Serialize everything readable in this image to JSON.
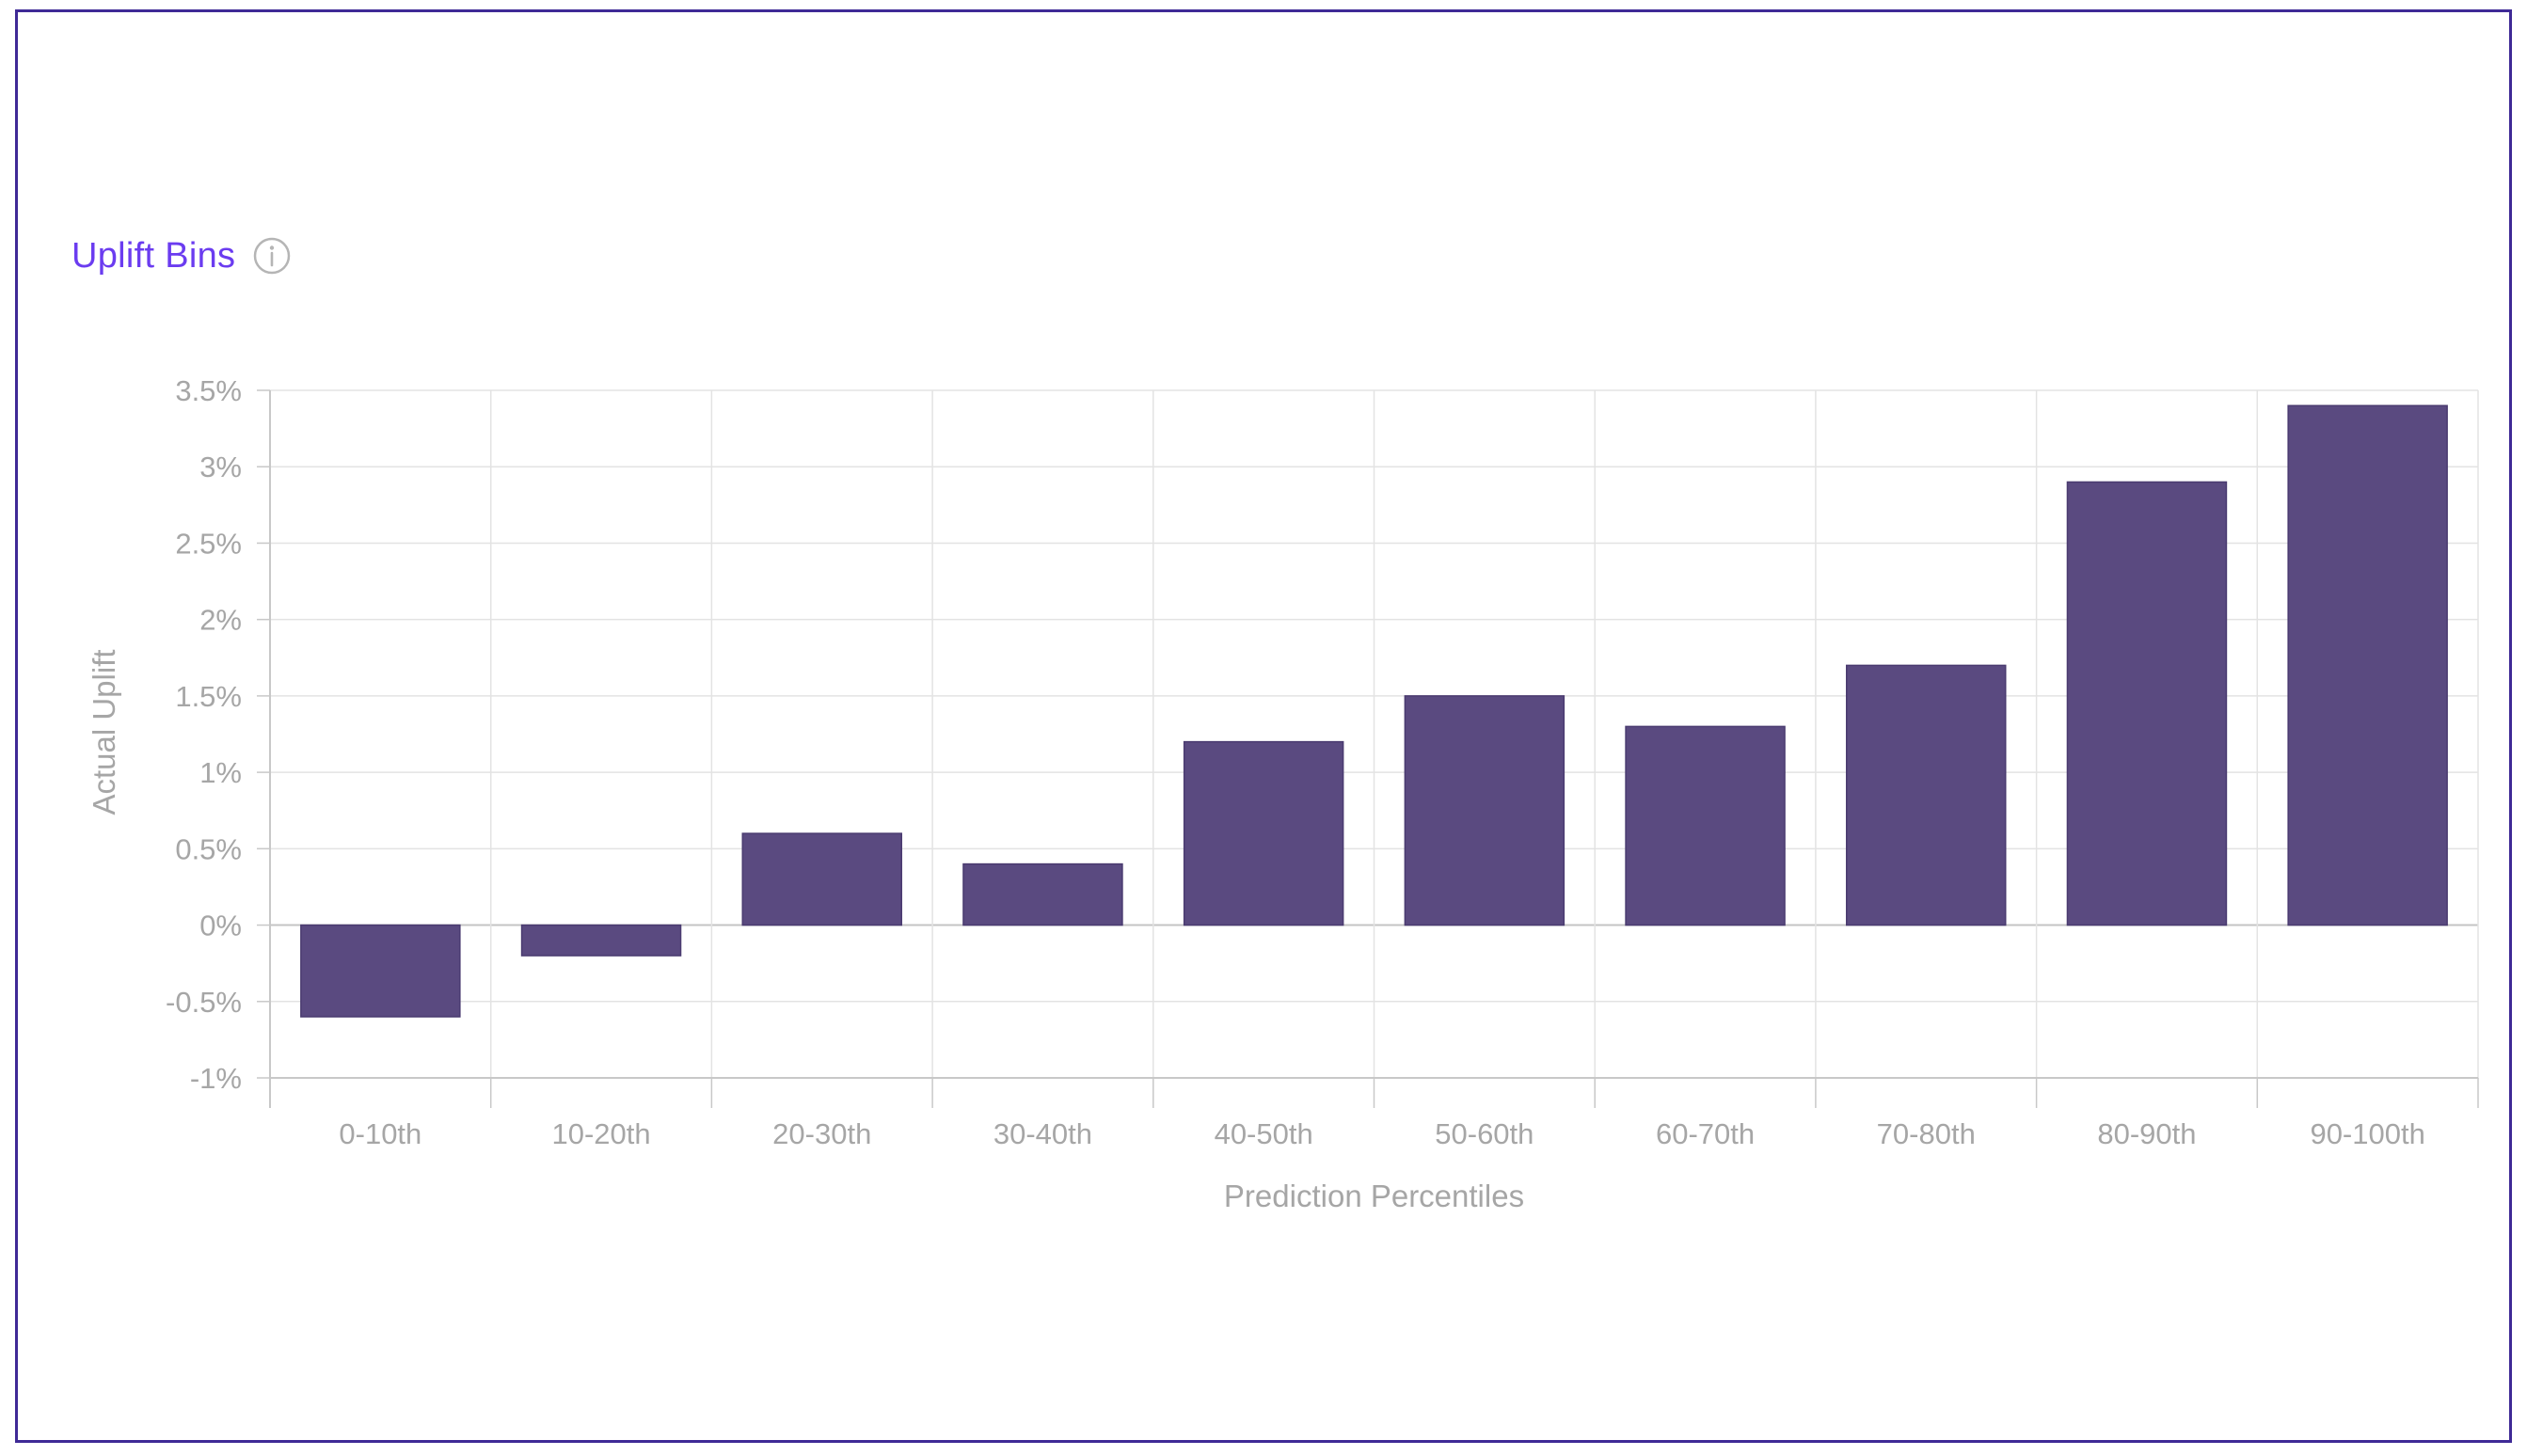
{
  "panel": {
    "title": "Uplift Bins",
    "info_icon": "info-circle-icon"
  },
  "colors": {
    "title": "#6b3cf0",
    "bar": "#5a4a80",
    "grid": "#e3e3e3",
    "axis": "#c8c8c8",
    "text": "#a6a6a6",
    "frame": "#3f2a96"
  },
  "chart_data": {
    "type": "bar",
    "categories": [
      "0-10th",
      "10-20th",
      "20-30th",
      "30-40th",
      "40-50th",
      "50-60th",
      "60-70th",
      "70-80th",
      "80-90th",
      "90-100th"
    ],
    "values": [
      -0.6,
      -0.2,
      0.6,
      0.4,
      1.2,
      1.5,
      1.3,
      1.7,
      2.9,
      3.4
    ],
    "unit": "%",
    "xlabel": "Prediction Percentiles",
    "ylabel": "Actual Uplift",
    "ylim": [
      -1,
      3.5
    ],
    "yticks": [
      -1,
      -0.5,
      0,
      0.5,
      1,
      1.5,
      2,
      2.5,
      3,
      3.5
    ],
    "ytick_labels": [
      "-1%",
      "-0.5%",
      "0%",
      "0.5%",
      "1%",
      "1.5%",
      "2%",
      "2.5%",
      "3%",
      "3.5%"
    ],
    "grid": true,
    "legend": false
  }
}
